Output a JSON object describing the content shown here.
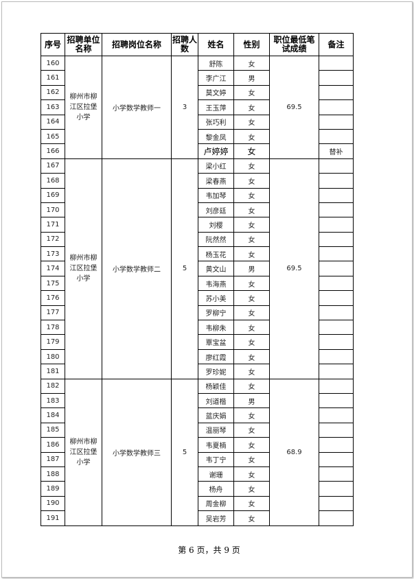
{
  "headers": [
    "序号",
    "招聘单位名称",
    "招聘岗位名称",
    "招聘人数",
    "姓名",
    "性别",
    "职位最低笔试成绩",
    "备注"
  ],
  "groups": [
    {
      "unit": "柳州市柳江区拉堡小学",
      "position": "小学数学教师一",
      "count": "3",
      "score": "69.5",
      "rows": [
        {
          "no": "160",
          "name": "舒陈",
          "gender": "女",
          "note": ""
        },
        {
          "no": "161",
          "name": "李广江",
          "gender": "男",
          "note": ""
        },
        {
          "no": "162",
          "name": "莫文婷",
          "gender": "女",
          "note": ""
        },
        {
          "no": "163",
          "name": "王玉萍",
          "gender": "女",
          "note": ""
        },
        {
          "no": "164",
          "name": "张巧利",
          "gender": "女",
          "note": ""
        },
        {
          "no": "165",
          "name": "黎金凤",
          "gender": "女",
          "note": ""
        },
        {
          "no": "166",
          "name": "卢婷婷",
          "gender": "女",
          "note": "替补"
        }
      ]
    },
    {
      "unit": "柳州市柳江区拉堡小学",
      "position": "小学数学教师二",
      "count": "5",
      "score": "69.5",
      "rows": [
        {
          "no": "167",
          "name": "梁小红",
          "gender": "女",
          "note": ""
        },
        {
          "no": "168",
          "name": "梁春燕",
          "gender": "女",
          "note": ""
        },
        {
          "no": "169",
          "name": "韦加琴",
          "gender": "女",
          "note": ""
        },
        {
          "no": "170",
          "name": "刘彦廷",
          "gender": "女",
          "note": ""
        },
        {
          "no": "171",
          "name": "刘樱",
          "gender": "女",
          "note": ""
        },
        {
          "no": "172",
          "name": "阮然然",
          "gender": "女",
          "note": ""
        },
        {
          "no": "173",
          "name": "杨玉花",
          "gender": "女",
          "note": ""
        },
        {
          "no": "174",
          "name": "黄文山",
          "gender": "男",
          "note": ""
        },
        {
          "no": "175",
          "name": "韦海燕",
          "gender": "女",
          "note": ""
        },
        {
          "no": "176",
          "name": "苏小美",
          "gender": "女",
          "note": ""
        },
        {
          "no": "177",
          "name": "罗柳宁",
          "gender": "女",
          "note": ""
        },
        {
          "no": "178",
          "name": "韦柳朱",
          "gender": "女",
          "note": ""
        },
        {
          "no": "179",
          "name": "覃宝盆",
          "gender": "女",
          "note": ""
        },
        {
          "no": "180",
          "name": "廖红霞",
          "gender": "女",
          "note": ""
        },
        {
          "no": "181",
          "name": "罗珍妮",
          "gender": "女",
          "note": ""
        }
      ]
    },
    {
      "unit": "柳州市柳江区拉堡小学",
      "position": "小学数学教师三",
      "count": "5",
      "score": "68.9",
      "rows": [
        {
          "no": "182",
          "name": "杨颖佳",
          "gender": "女",
          "note": ""
        },
        {
          "no": "183",
          "name": "刘道楷",
          "gender": "男",
          "note": ""
        },
        {
          "no": "184",
          "name": "蓝庆娟",
          "gender": "女",
          "note": ""
        },
        {
          "no": "185",
          "name": "温丽琴",
          "gender": "女",
          "note": ""
        },
        {
          "no": "186",
          "name": "韦夏楠",
          "gender": "女",
          "note": ""
        },
        {
          "no": "187",
          "name": "韦丁宁",
          "gender": "女",
          "note": ""
        },
        {
          "no": "188",
          "name": "谢珊",
          "gender": "女",
          "note": ""
        },
        {
          "no": "189",
          "name": "杨舟",
          "gender": "女",
          "note": ""
        },
        {
          "no": "190",
          "name": "周金柳",
          "gender": "女",
          "note": ""
        },
        {
          "no": "191",
          "name": "吴岩芳",
          "gender": "女",
          "note": ""
        }
      ]
    }
  ],
  "footer": "第 6 页，共 9 页"
}
